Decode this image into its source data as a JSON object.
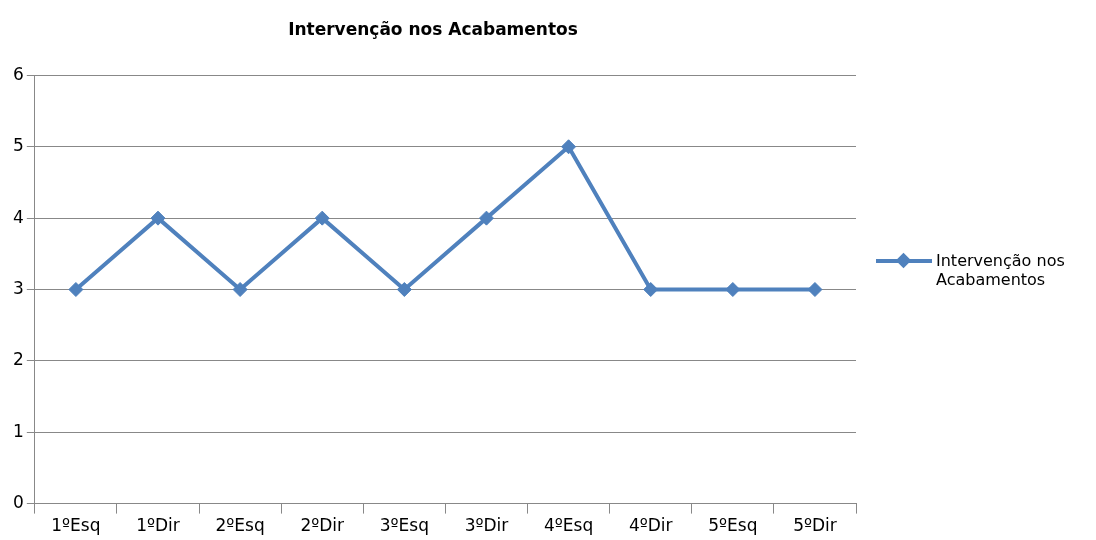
{
  "chart_data": {
    "type": "line",
    "title": "Intervenção nos Acabamentos",
    "categories": [
      "1ºEsq",
      "1ºDir",
      "2ºEsq",
      "2ºDir",
      "3ºEsq",
      "3ºDir",
      "4ºEsq",
      "4ºDir",
      "5ºEsq",
      "5ºDir"
    ],
    "series": [
      {
        "name": "Intervenção nos Acabamentos",
        "color": "#4f81bd",
        "values": [
          3,
          4,
          3,
          4,
          3,
          4,
          5,
          3,
          3,
          3
        ]
      }
    ],
    "ylim": [
      0,
      6
    ],
    "yticks": [
      0,
      1,
      2,
      3,
      4,
      5,
      6
    ],
    "grid": "y",
    "legend": "right",
    "marker": "diamond",
    "line_style": "solid"
  }
}
